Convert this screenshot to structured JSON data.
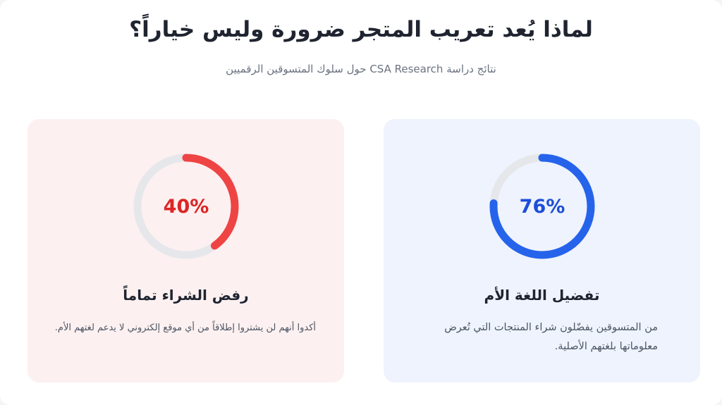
{
  "header": {
    "title": "لماذا يُعد تعريب المتجر ضرورة وليس خياراً؟",
    "subtitle": "نتائج دراسة CSA Research حول سلوك المتسوقين الرقميين"
  },
  "cards": [
    {
      "percent_label": "76%",
      "value": 76,
      "title": "تفضيل اللغة الأم",
      "description": "من المتسوقين يفضّلون شراء المنتجات التي تُعرض معلوماتها بلغتهم الأصلية.",
      "accent_color": "#2563eb",
      "text_color": "#1d4ed8",
      "background": "#eef3fd"
    },
    {
      "percent_label": "40%",
      "value": 40,
      "title": "رفض الشراء تماماً",
      "description": "أكدوا أنهم لن يشتروا إطلاقاً من أي موقع إلكتروني لا يدعم لغتهم الأم.",
      "accent_color": "#ef4444",
      "text_color": "#dc2626",
      "background": "#fdf0f0"
    }
  ],
  "colors": {
    "track": "#e5e7eb"
  }
}
